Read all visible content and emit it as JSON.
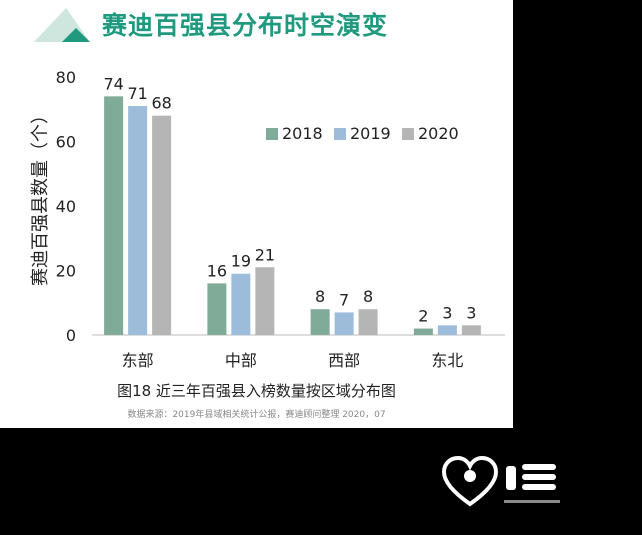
{
  "header": {
    "title": "赛迪百强县分布时空演变"
  },
  "caption": "图18 近三年百强县入榜数量按区域分布图",
  "source": "数据来源：2019年县域相关统计公报，赛迪顾问整理 2020，07",
  "colors": {
    "accent": "#1f9a7f",
    "s2018": "#7fab98",
    "s2019": "#9cbcd9",
    "s2020": "#b5b5b5"
  },
  "chart_data": {
    "type": "bar",
    "title": "",
    "ylabel": "赛迪百强县数量（个）",
    "xlabel": "",
    "categories": [
      "东部",
      "中部",
      "西部",
      "东北"
    ],
    "series": [
      {
        "name": "2018",
        "values": [
          74,
          16,
          8,
          2
        ],
        "color": "#7fab98"
      },
      {
        "name": "2019",
        "values": [
          71,
          19,
          7,
          3
        ],
        "color": "#9cbcd9"
      },
      {
        "name": "2020",
        "values": [
          68,
          21,
          8,
          3
        ],
        "color": "#b5b5b5"
      }
    ],
    "ylim": [
      0,
      80
    ],
    "yticks": [
      0,
      20,
      40,
      60,
      80
    ],
    "grid": false,
    "legend": "top-right"
  }
}
